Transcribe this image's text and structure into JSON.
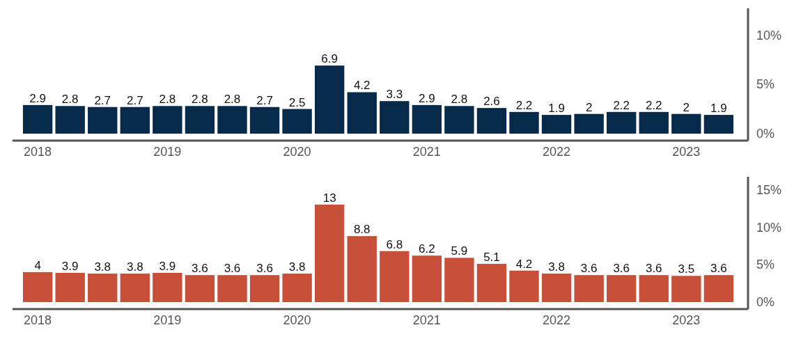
{
  "chart_data": [
    {
      "type": "bar",
      "categories": [
        "2018",
        null,
        null,
        null,
        "2019",
        null,
        null,
        null,
        "2020",
        null,
        null,
        null,
        "2021",
        null,
        null,
        null,
        "2022",
        null,
        null,
        null,
        "2023",
        null
      ],
      "values": [
        2.9,
        2.8,
        2.7,
        2.7,
        2.8,
        2.8,
        2.8,
        2.7,
        2.5,
        6.9,
        4.2,
        3.3,
        2.9,
        2.8,
        2.6,
        2.2,
        1.9,
        2,
        2.2,
        2.2,
        2,
        1.9
      ],
      "color": "#072a4a",
      "ylim": [
        0,
        12.7
      ],
      "yticks": [
        {
          "value": 0,
          "label": "0%"
        },
        {
          "value": 5,
          "label": "5%"
        },
        {
          "value": 10,
          "label": "10%"
        }
      ],
      "data_labels": true,
      "grid": false
    },
    {
      "type": "bar",
      "categories": [
        "2018",
        null,
        null,
        null,
        "2019",
        null,
        null,
        null,
        "2020",
        null,
        null,
        null,
        "2021",
        null,
        null,
        null,
        "2022",
        null,
        null,
        null,
        "2023",
        null
      ],
      "values": [
        4,
        3.9,
        3.8,
        3.8,
        3.9,
        3.6,
        3.6,
        3.6,
        3.8,
        13,
        8.8,
        6.8,
        6.2,
        5.9,
        5.1,
        4.2,
        3.8,
        3.6,
        3.6,
        3.6,
        3.5,
        3.6
      ],
      "color": "#c8503b",
      "ylim": [
        0,
        16.7
      ],
      "yticks": [
        {
          "value": 0,
          "label": "0%"
        },
        {
          "value": 5,
          "label": "5%"
        },
        {
          "value": 10,
          "label": "10%"
        },
        {
          "value": 15,
          "label": "15%"
        }
      ],
      "data_labels": true,
      "grid": false
    }
  ]
}
